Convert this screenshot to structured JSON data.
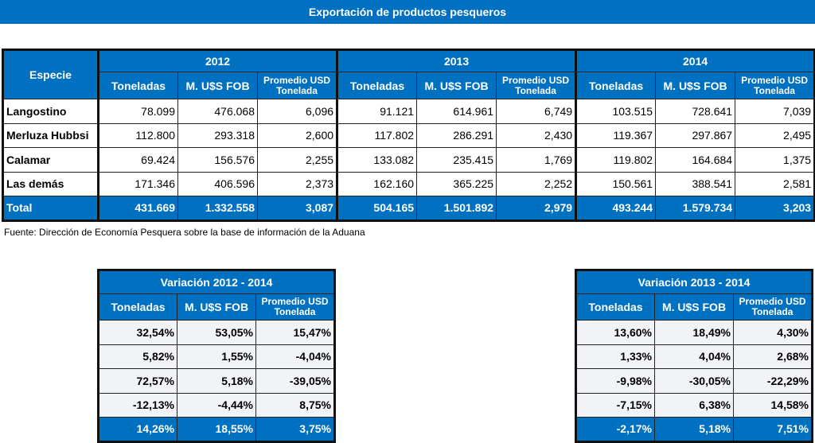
{
  "title": "Exportación de productos pesqueros",
  "main": {
    "especie_header": "Especie",
    "years": [
      "2012",
      "2013",
      "2014"
    ],
    "subheaders": [
      "Toneladas",
      "M. U$S FOB",
      "Promedio USD Tonelada"
    ],
    "rows": [
      {
        "especie": "Langostino",
        "values": [
          "78.099",
          "476.068",
          "6,096",
          "91.121",
          "614.961",
          "6,749",
          "103.515",
          "728.641",
          "7,039"
        ]
      },
      {
        "especie": "Merluza Hubbsi",
        "values": [
          "112.800",
          "293.318",
          "2,600",
          "117.802",
          "286.291",
          "2,430",
          "119.367",
          "297.867",
          "2,495"
        ]
      },
      {
        "especie": "Calamar",
        "values": [
          "69.424",
          "156.576",
          "2,255",
          "133.082",
          "235.415",
          "1,769",
          "119.802",
          "164.684",
          "1,375"
        ]
      },
      {
        "especie": "Las demás",
        "values": [
          "171.346",
          "406.596",
          "2,373",
          "162.160",
          "365.225",
          "2,252",
          "150.561",
          "388.541",
          "2,581"
        ]
      }
    ],
    "total": {
      "especie": "Total",
      "values": [
        "431.669",
        "1.332.558",
        "3,087",
        "504.165",
        "1.501.892",
        "2,979",
        "493.244",
        "1.579.734",
        "3,203"
      ]
    }
  },
  "source": "Fuente: Dirección de Economía Pesquera sobre la base de información de la Aduana",
  "variations": [
    {
      "title": "Variación 2012 - 2014",
      "rows": [
        [
          "32,54%",
          "53,05%",
          "15,47%"
        ],
        [
          "5,82%",
          "1,55%",
          "-4,04%"
        ],
        [
          "72,57%",
          "5,18%",
          "-39,05%"
        ],
        [
          "-12,13%",
          "-4,44%",
          "8,75%"
        ]
      ],
      "total": [
        "14,26%",
        "18,55%",
        "3,75%"
      ]
    },
    {
      "title": "Variación 2013 - 2014",
      "rows": [
        [
          "13,60%",
          "18,49%",
          "4,30%"
        ],
        [
          "1,33%",
          "4,04%",
          "2,68%"
        ],
        [
          "-9,98%",
          "-30,05%",
          "-22,29%"
        ],
        [
          "-7,15%",
          "6,38%",
          "14,58%"
        ]
      ],
      "total": [
        "-2,17%",
        "5,18%",
        "7,51%"
      ]
    }
  ],
  "colors": {
    "header_blue": "#0070c0",
    "row_fill": "#f1f3f7"
  }
}
